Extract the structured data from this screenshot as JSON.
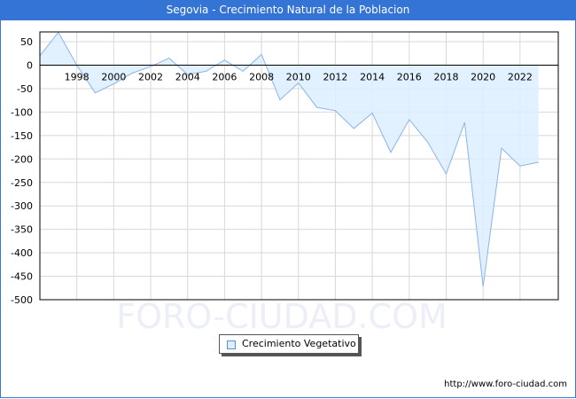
{
  "window": {
    "title": "Segovia - Crecimiento Natural de la Poblacion"
  },
  "legend": {
    "label": "Crecimiento Vegetativo"
  },
  "footer": {
    "url": "http://www.foro-ciudad.com"
  },
  "watermark": "FORO-CIUDAD.COM",
  "colors": {
    "title_bar": "#3474d4",
    "line": "#8ab4ea",
    "fill": "#ddeeff",
    "grid": "#d8d8d8"
  },
  "chart_data": {
    "type": "area",
    "title": "Segovia - Crecimiento Natural de la Poblacion",
    "xlabel": "",
    "ylabel": "",
    "x": [
      1996,
      1997,
      1998,
      1999,
      2000,
      2001,
      2002,
      2003,
      2004,
      2005,
      2006,
      2007,
      2008,
      2009,
      2010,
      2011,
      2012,
      2013,
      2014,
      2015,
      2016,
      2017,
      2018,
      2019,
      2020,
      2021,
      2022,
      2023
    ],
    "series": [
      {
        "name": "Crecimiento Vegetativo",
        "values": [
          20,
          70,
          0,
          -59,
          -40,
          -17,
          -3,
          15,
          -20,
          -13,
          11,
          -13,
          23,
          -74,
          -38,
          -90,
          -97,
          -135,
          -102,
          -186,
          -116,
          -164,
          -232,
          -122,
          -472,
          -177,
          -215,
          -207
        ]
      }
    ],
    "x_tick_labels": [
      "1998",
      "2000",
      "2002",
      "2004",
      "2006",
      "2008",
      "2010",
      "2012",
      "2014",
      "2016",
      "2018",
      "2020",
      "2022"
    ],
    "y_tick_labels": [
      "50",
      "0",
      "-50",
      "-100",
      "-150",
      "-200",
      "-250",
      "-300",
      "-350",
      "-400",
      "-450",
      "-500"
    ],
    "ylim": [
      -500,
      70
    ],
    "grid": true,
    "legend_position": "bottom-center"
  }
}
